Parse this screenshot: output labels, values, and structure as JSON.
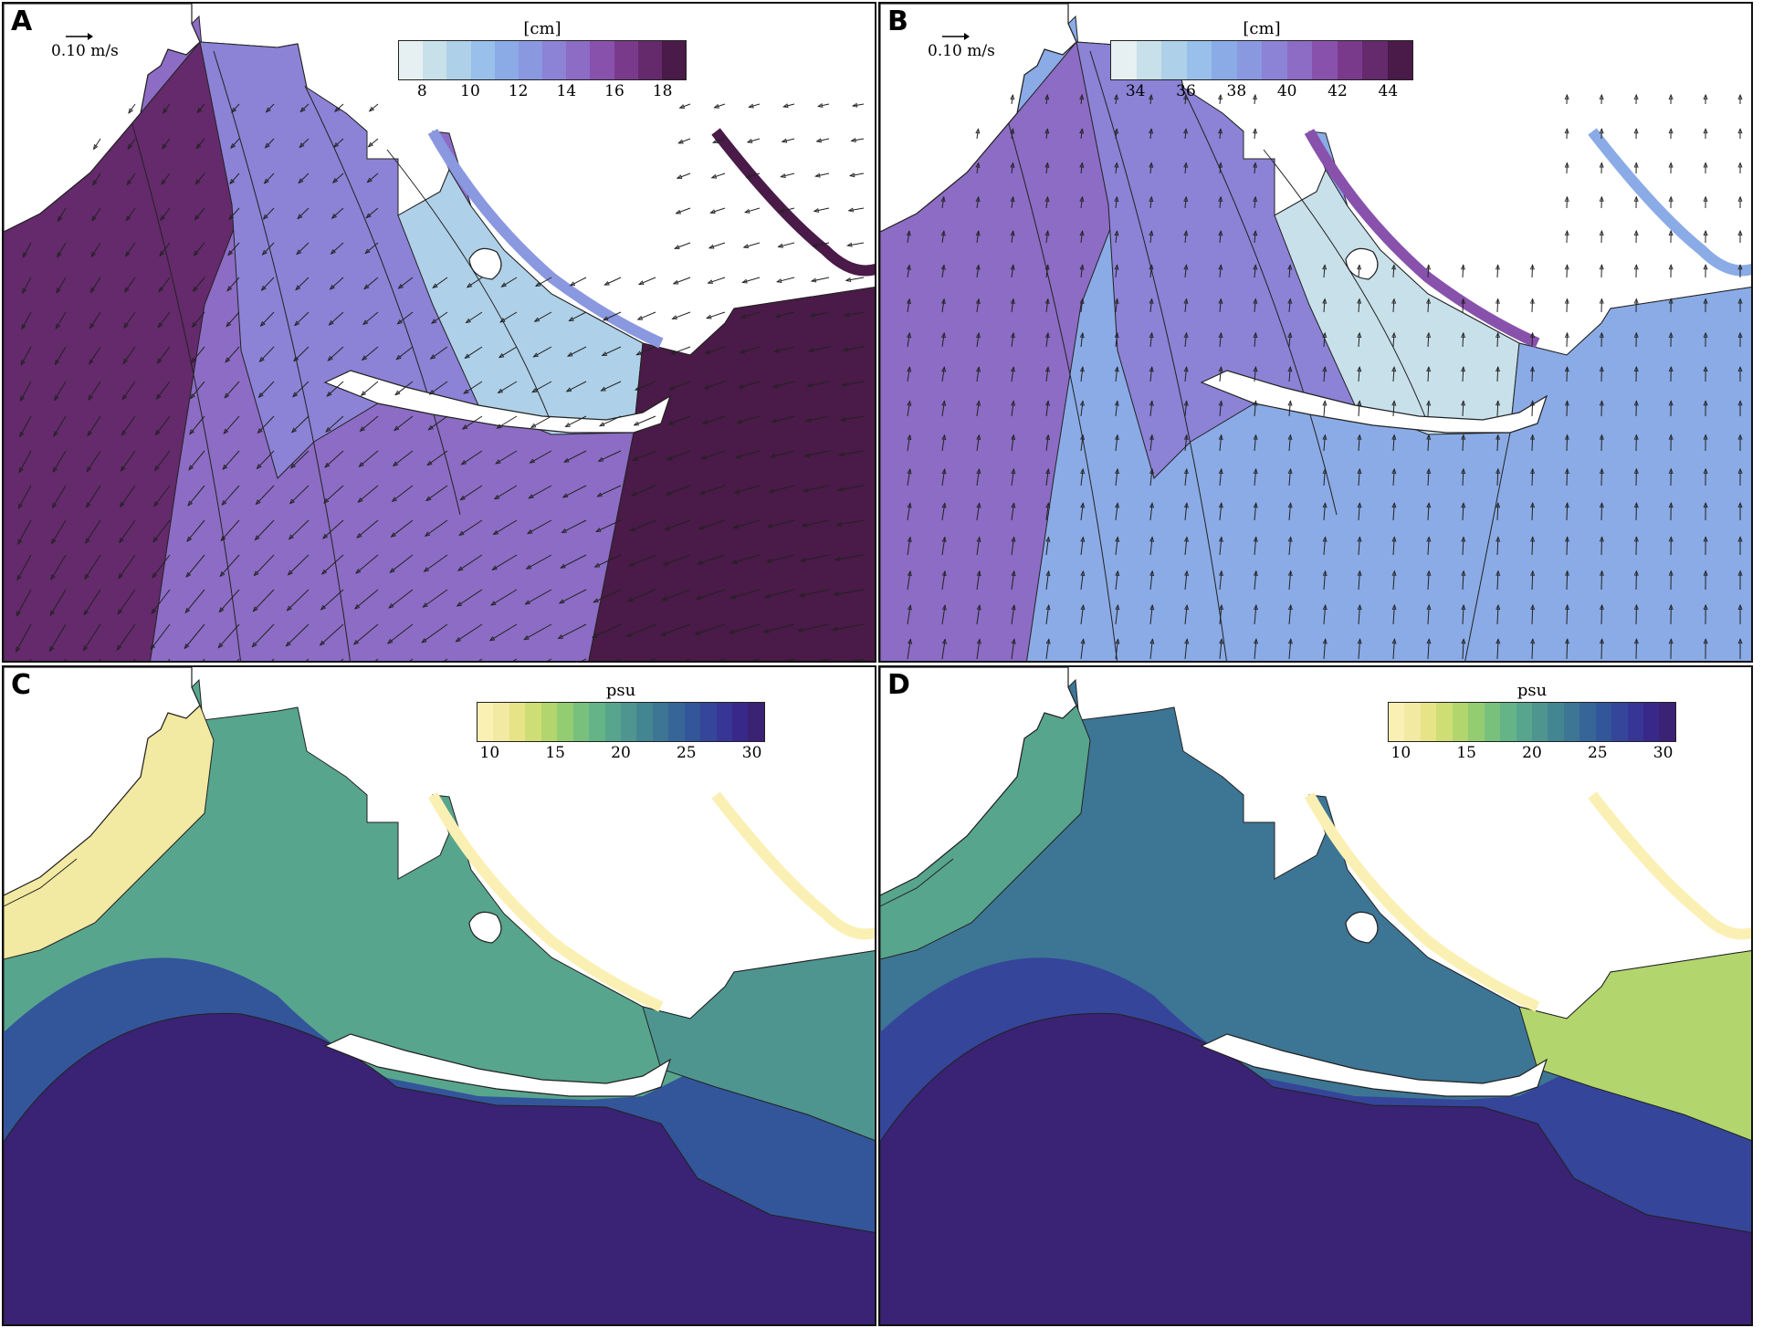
{
  "panels": [
    {
      "id": "A",
      "letter": "A",
      "variable": "elevation",
      "scale_label": "0.10 m/s",
      "colorbar": {
        "title": "[cm]",
        "ticks": [
          "8",
          "10",
          "12",
          "14",
          "16",
          "18"
        ],
        "range": [
          7,
          19
        ],
        "colors": [
          "#e6f0f2",
          "#c8e0ea",
          "#aed0e8",
          "#98c0ea",
          "#8aabe6",
          "#8a98e0",
          "#8c82d6",
          "#8c6cc4",
          "#8852ac",
          "#7a3a8c",
          "#642a6c",
          "#4a1a48"
        ]
      },
      "field": {
        "background_level": 14.5,
        "north_level": 12.5,
        "west_level": 17.5,
        "east_inlet_level": 18.5,
        "lagoon_level": 9.5
      }
    },
    {
      "id": "B",
      "letter": "B",
      "variable": "elevation",
      "scale_label": "0.10 m/s",
      "colorbar": {
        "title": "[cm]",
        "ticks": [
          "34",
          "36",
          "38",
          "40",
          "42",
          "44"
        ],
        "range": [
          33,
          45
        ],
        "colors": [
          "#e6f0f2",
          "#c8e0ea",
          "#aed0e8",
          "#98c0ea",
          "#8aabe6",
          "#8a98e0",
          "#8c82d6",
          "#8c6cc4",
          "#8852ac",
          "#7a3a8c",
          "#642a6c",
          "#4a1a48"
        ]
      },
      "field": {
        "background_level": 37.0,
        "north_level": 41.0,
        "west_level": 40.0,
        "east_inlet_level": 37.5,
        "lagoon_level": 34.0
      }
    },
    {
      "id": "C",
      "letter": "C",
      "variable": "salinity",
      "colorbar": {
        "title": "psu",
        "ticks": [
          "10",
          "15",
          "20",
          "25",
          "30"
        ],
        "range": [
          9,
          31
        ],
        "colors": [
          "#fbf0b4",
          "#f2e9a2",
          "#e6e486",
          "#cfde74",
          "#b2d56e",
          "#94cc72",
          "#78c17c",
          "#64b487",
          "#57a58d",
          "#4e9590",
          "#448592",
          "#3d7595",
          "#376598",
          "#33559a",
          "#35459a",
          "#373696",
          "#38288a",
          "#3a2274"
        ]
      },
      "field": {
        "sea_level": 30.5,
        "bay_level": 19.5,
        "west_shelf_level": 10.5,
        "east_river_level": 21.0,
        "shelf_band_level": 25.5
      }
    },
    {
      "id": "D",
      "letter": "D",
      "variable": "salinity",
      "colorbar": {
        "title": "psu",
        "ticks": [
          "10",
          "15",
          "20",
          "25",
          "30"
        ],
        "range": [
          9,
          31
        ],
        "colors": [
          "#fbf0b4",
          "#f2e9a2",
          "#e6e486",
          "#cfde74",
          "#b2d56e",
          "#94cc72",
          "#78c17c",
          "#64b487",
          "#57a58d",
          "#4e9590",
          "#448592",
          "#3d7595",
          "#376598",
          "#33559a",
          "#35459a",
          "#373696",
          "#38288a",
          "#3a2274"
        ]
      },
      "field": {
        "sea_level": 30.5,
        "bay_level": 23.5,
        "west_shelf_level": 19.0,
        "east_river_level": 15.0,
        "shelf_band_level": 26.5
      }
    }
  ]
}
